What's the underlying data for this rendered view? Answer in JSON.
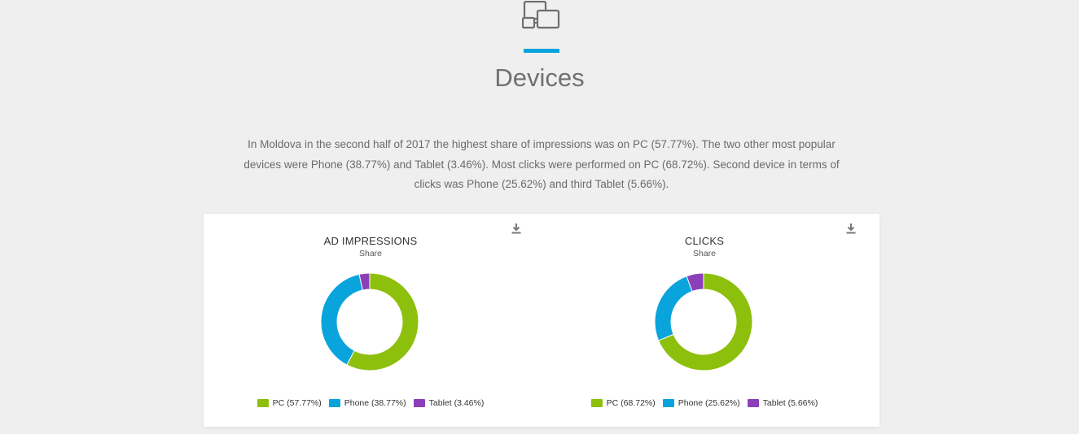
{
  "header": {
    "icon": "devices-icon",
    "title": "Devices",
    "accent_color": "#0aa4dc"
  },
  "intro": {
    "text": "In Moldova in the second half of 2017 the highest share of impressions was on PC (57.77%). The two other most popular devices were Phone (38.77%) and Tablet (3.46%). Most clicks were performed on PC (68.72%). Second device in terms of clicks was Phone (25.62%) and third Tablet (5.66%)."
  },
  "colors": {
    "PC": "#8dbf0d",
    "Phone": "#0aa4dc",
    "Tablet": "#8c3fb8"
  },
  "chart_data": [
    {
      "type": "pie",
      "variant": "donut",
      "title": "AD IMPRESSIONS",
      "subtitle": "Share",
      "categories": [
        "PC",
        "Phone",
        "Tablet"
      ],
      "values": [
        57.77,
        38.77,
        3.46
      ],
      "legend": [
        "PC (57.77%)",
        "Phone (38.77%)",
        "Tablet (3.46%)"
      ],
      "legend_position": "bottom"
    },
    {
      "type": "pie",
      "variant": "donut",
      "title": "CLICKS",
      "subtitle": "Share",
      "categories": [
        "PC",
        "Phone",
        "Tablet"
      ],
      "values": [
        68.72,
        25.62,
        5.66
      ],
      "legend": [
        "PC (68.72%)",
        "Phone (25.62%)",
        "Tablet (5.66%)"
      ],
      "legend_position": "bottom"
    }
  ]
}
